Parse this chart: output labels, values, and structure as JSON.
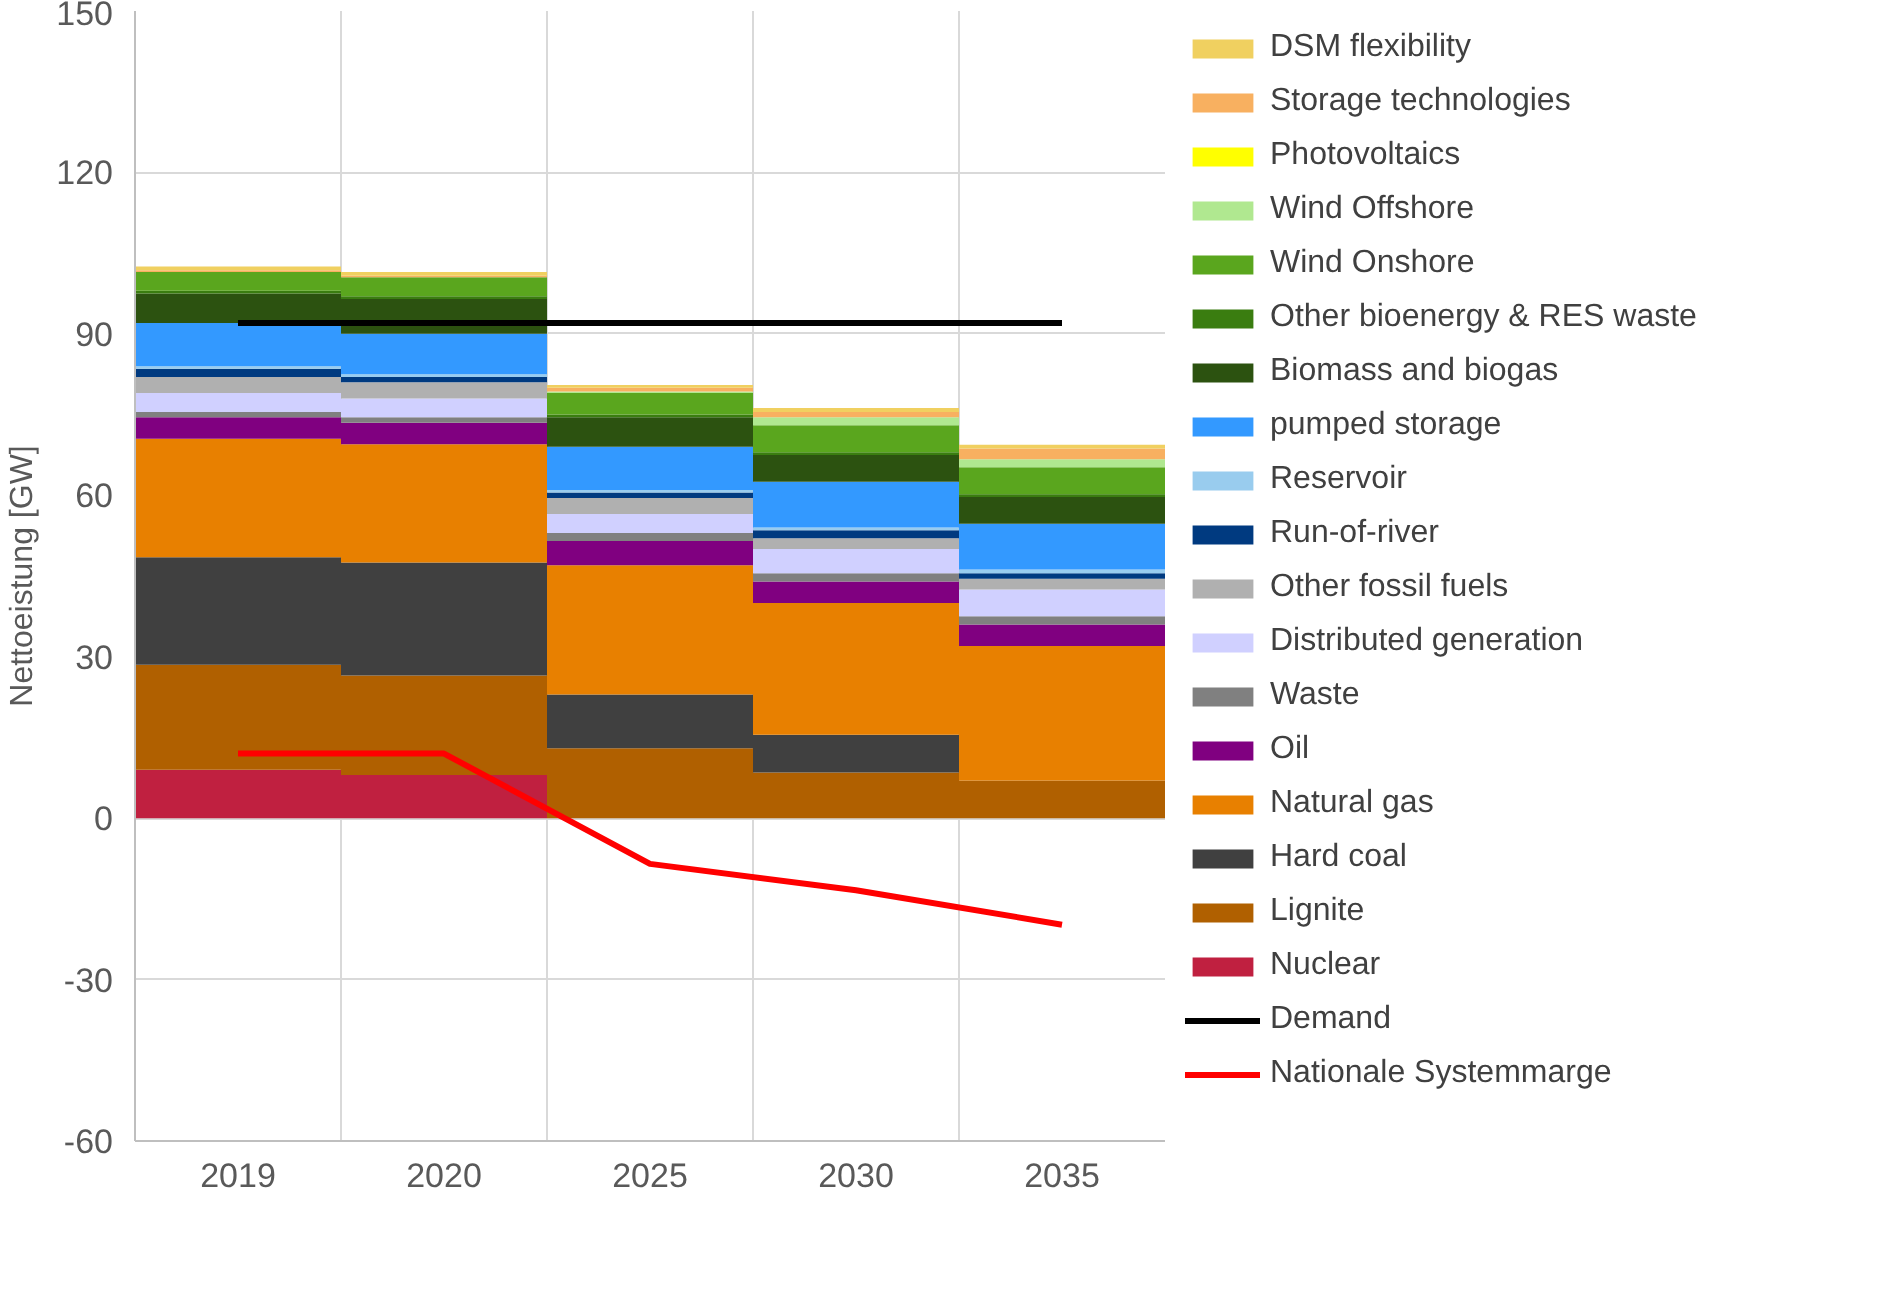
{
  "chart_data": {
    "type": "bar",
    "stacked": true,
    "ylabel": "Nettoeistung [GW]",
    "categories": [
      "2019",
      "2020",
      "2025",
      "2030",
      "2035"
    ],
    "ylim": [
      -60,
      150
    ],
    "yticks": [
      -60,
      -30,
      0,
      30,
      60,
      90,
      120,
      150
    ],
    "grid": true,
    "legend": "right",
    "series": [
      {
        "name": "Nuclear",
        "color": "#c02040",
        "values": [
          9,
          8,
          0,
          0,
          0
        ]
      },
      {
        "name": "Lignite",
        "color": "#b06000",
        "values": [
          19.5,
          18.5,
          13,
          8.5,
          7
        ]
      },
      {
        "name": "Hard coal",
        "color": "#404040",
        "values": [
          20,
          21,
          10,
          7,
          0
        ]
      },
      {
        "name": "Natural gas",
        "color": "#e88000",
        "values": [
          22,
          22,
          24,
          24.5,
          25
        ]
      },
      {
        "name": "Oil",
        "color": "#800080",
        "values": [
          4,
          4,
          4.5,
          4,
          4
        ]
      },
      {
        "name": "Waste",
        "color": "#808080",
        "values": [
          1,
          1,
          1.5,
          1.5,
          1.5
        ]
      },
      {
        "name": "Distributed generation",
        "color": "#d0d0ff",
        "values": [
          3.5,
          3.5,
          3.5,
          4.5,
          5
        ]
      },
      {
        "name": "Other fossil fuels",
        "color": "#b0b0b0",
        "values": [
          3,
          3,
          3,
          2,
          2
        ]
      },
      {
        "name": "Run-of-river",
        "color": "#003a80",
        "values": [
          1.5,
          1,
          1,
          1.5,
          1
        ]
      },
      {
        "name": "Reservoir",
        "color": "#99ccee",
        "values": [
          0.5,
          0.5,
          0.5,
          0.5,
          0.7
        ]
      },
      {
        "name": "pumped storage",
        "color": "#3399ff",
        "values": [
          8,
          7.5,
          8,
          8.5,
          8.5
        ]
      },
      {
        "name": "Biomass and biogas",
        "color": "#2c5210",
        "values": [
          5.5,
          6.5,
          5.5,
          5,
          5
        ]
      },
      {
        "name": "Other bioenergy & RES waste",
        "color": "#3a7d10",
        "values": [
          0.5,
          0.5,
          0.5,
          0.5,
          0.5
        ]
      },
      {
        "name": "Wind Onshore",
        "color": "#5aa61e",
        "values": [
          3.5,
          3.5,
          4,
          5,
          5
        ]
      },
      {
        "name": "Wind Offshore",
        "color": "#b0e890",
        "values": [
          0,
          0,
          0.3,
          1.5,
          1.5
        ]
      },
      {
        "name": "Photovoltaics",
        "color": "#ffff00",
        "values": [
          0,
          0,
          0,
          0,
          0
        ]
      },
      {
        "name": "Storage technologies",
        "color": "#f8b060",
        "values": [
          0.3,
          0.3,
          0.7,
          1,
          2
        ]
      },
      {
        "name": "DSM flexibility",
        "color": "#f0d060",
        "values": [
          0.7,
          0.7,
          0.5,
          0.7,
          0.7
        ]
      },
      {
        "name": "Demand",
        "type": "line",
        "color": "#000000",
        "values": [
          92,
          92,
          92,
          92,
          92
        ]
      },
      {
        "name": "Nationale Systemmarge",
        "type": "line",
        "color": "#ff0000",
        "values": [
          12,
          12,
          -8.5,
          -13.4,
          -19.8
        ]
      }
    ]
  }
}
